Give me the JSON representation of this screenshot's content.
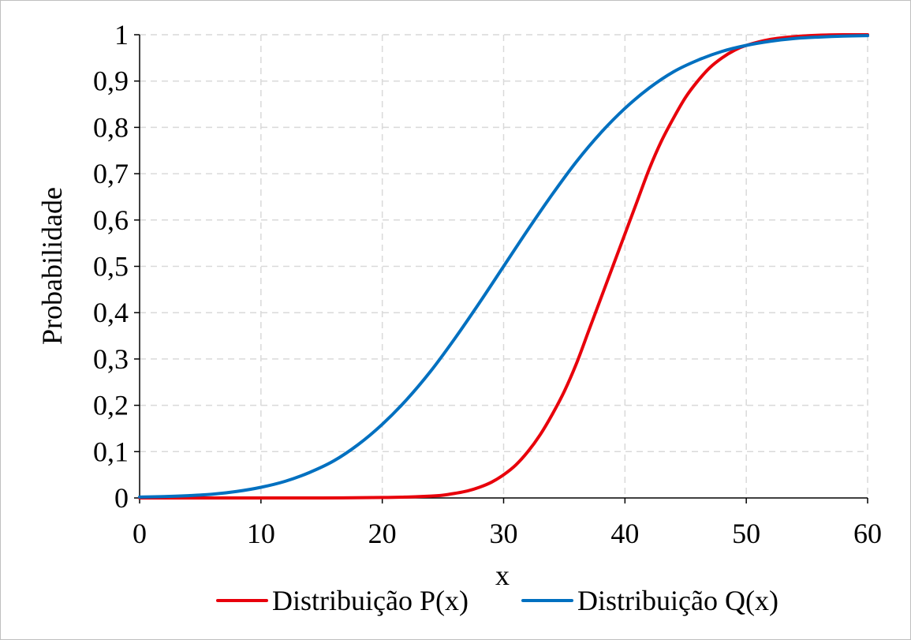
{
  "chart_data": {
    "type": "line",
    "xlabel": "x",
    "ylabel": "Probabilidade",
    "xlim": [
      0,
      60
    ],
    "ylim": [
      0,
      1
    ],
    "x_ticks": [
      0,
      10,
      20,
      30,
      40,
      50,
      60
    ],
    "x_tick_labels": [
      "0",
      "10",
      "20",
      "30",
      "40",
      "50",
      "60"
    ],
    "y_ticks": [
      0,
      0.1,
      0.2,
      0.3,
      0.4,
      0.5,
      0.6,
      0.7,
      0.8,
      0.9,
      1
    ],
    "y_tick_labels": [
      "0",
      "0,1",
      "0,2",
      "0,3",
      "0,4",
      "0,5",
      "0,6",
      "0,7",
      "0,8",
      "0,9",
      "1"
    ],
    "grid": true,
    "legend_position": "bottom",
    "series": [
      {
        "name": "Distribuição P(x)",
        "color": "#e8000b",
        "x": [
          0,
          5,
          10,
          15,
          20,
          22,
          24,
          25,
          26,
          27,
          28,
          29,
          30,
          31,
          32,
          33,
          34,
          35,
          36,
          37,
          38,
          39,
          40,
          41,
          42,
          43,
          44,
          45,
          46,
          47,
          48,
          49,
          50,
          52,
          54,
          56,
          58,
          60
        ],
        "y": [
          0,
          0,
          0,
          0,
          0.001,
          0.002,
          0.004,
          0.006,
          0.01,
          0.015,
          0.023,
          0.034,
          0.05,
          0.071,
          0.1,
          0.136,
          0.18,
          0.23,
          0.29,
          0.36,
          0.43,
          0.5,
          0.57,
          0.64,
          0.71,
          0.77,
          0.82,
          0.865,
          0.9,
          0.929,
          0.95,
          0.966,
          0.977,
          0.99,
          0.996,
          0.999,
          1.0,
          1.0
        ]
      },
      {
        "name": "Distribuição Q(x)",
        "color": "#0070c0",
        "x": [
          0,
          2,
          4,
          6,
          8,
          10,
          12,
          14,
          16,
          18,
          20,
          22,
          24,
          26,
          28,
          30,
          32,
          34,
          36,
          38,
          40,
          42,
          44,
          46,
          48,
          50,
          52,
          54,
          56,
          58,
          60
        ],
        "y": [
          0.002,
          0.003,
          0.005,
          0.008,
          0.014,
          0.023,
          0.036,
          0.055,
          0.08,
          0.115,
          0.159,
          0.212,
          0.274,
          0.345,
          0.421,
          0.5,
          0.579,
          0.655,
          0.726,
          0.788,
          0.841,
          0.885,
          0.92,
          0.945,
          0.964,
          0.977,
          0.986,
          0.992,
          0.995,
          0.997,
          0.998
        ]
      }
    ]
  }
}
